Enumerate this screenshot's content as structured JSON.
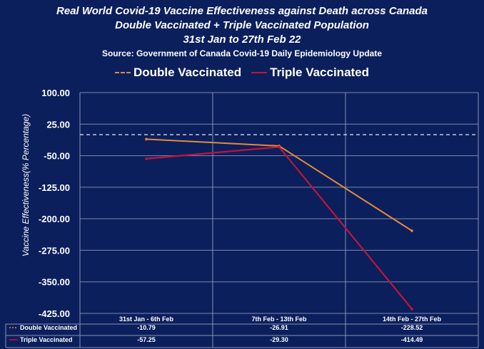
{
  "title_lines": [
    "Real World Covid-19 Vaccine Effectiveness against Death across Canada",
    "Double Vaccinated + Triple Vaccinated Population",
    "31st Jan to 27th Feb 22"
  ],
  "source": "Source: Government of Canada  Covid-19 Daily Epidemiology Update",
  "chart_data": {
    "type": "line",
    "categories": [
      "31st Jan - 6th Feb",
      "7th Feb - 13th Feb",
      "14th Feb - 27th Feb"
    ],
    "series": [
      {
        "name": "Double Vaccinated",
        "values": [
          -10.79,
          -26.91,
          -228.52
        ],
        "labels": [
          "-10.79",
          "-26.91",
          "-228.52"
        ],
        "color": "#e58a3c"
      },
      {
        "name": "Triple Vaccinated",
        "values": [
          -57.25,
          -29.3,
          -414.49
        ],
        "labels": [
          "-57.25",
          "-29.30",
          "-414.49"
        ],
        "color": "#c0143c"
      }
    ],
    "ylabel": "Vaccine Effectiveness(% Percentage)",
    "ylim": [
      -425,
      100
    ],
    "yticks": [
      "100.00",
      "25.00",
      "-50.00",
      "-125.00",
      "-200.00",
      "-275.00",
      "-350.00",
      "-425.00"
    ],
    "reference_line": {
      "value": 0,
      "style": "dashed",
      "color": "#ffffff"
    },
    "grid": "vertical",
    "legend_position": "top",
    "data_table": true,
    "colors": {
      "background": "#0b1f5c",
      "grid": "#8a93b8",
      "text": "#ffffff"
    }
  }
}
